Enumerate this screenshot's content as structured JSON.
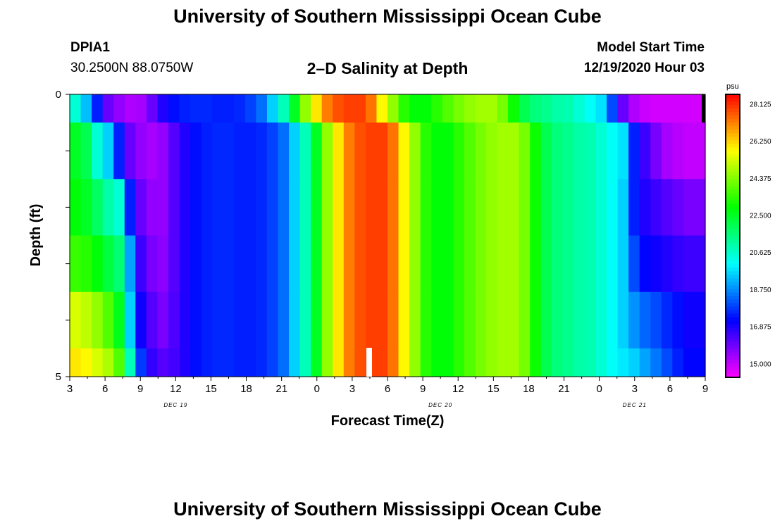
{
  "header": {
    "title": "University of Southern Mississippi Ocean Cube",
    "station": "DPIA1",
    "coordinates": "30.2500N 88.0750W",
    "subtitle": "2–D Salinity at Depth",
    "start_label": "Model Start Time",
    "start_value": "12/19/2020 Hour 03",
    "footer_title": "University of Southern Mississippi Ocean Cube"
  },
  "chart_data": {
    "type": "heatmap",
    "title": "2–D Salinity at Depth",
    "xlabel": "Forecast Time(Z)",
    "ylabel": "Depth (ft)",
    "ylim": [
      0,
      5
    ],
    "y_ticks": [
      "0",
      "5"
    ],
    "x_ticks": [
      "3",
      "6",
      "9",
      "12",
      "15",
      "18",
      "21",
      "0",
      "3",
      "6",
      "9",
      "12",
      "15",
      "18",
      "21",
      "0",
      "3",
      "6",
      "9"
    ],
    "date_labels": [
      "DEC 19",
      "DEC 20",
      "DEC 21"
    ],
    "colorbar": {
      "unit": "psu",
      "ticks": [
        "28.125",
        "26.250",
        "24.375",
        "22.500",
        "20.625",
        "18.750",
        "16.875",
        "15.000"
      ],
      "min": 14.3,
      "max": 28.6
    },
    "layers": [
      {
        "depth_range": [
          0,
          0.5
        ],
        "edge_values": [
          20.5,
          19.3,
          17.5,
          16.0,
          15.5,
          15.2,
          15.3,
          16.0,
          16.8,
          17.3,
          17.5,
          17.6,
          17.6,
          17.5,
          17.5,
          17.6,
          17.9,
          18.4,
          19.5,
          20.8,
          22.5,
          24.5,
          26.0,
          27.2,
          27.7,
          27.9,
          27.9,
          27.3,
          25.8,
          24.5,
          23.3,
          22.8,
          22.8,
          23.3,
          23.8,
          24.2,
          24.5,
          24.7,
          24.7,
          24.2,
          23.0,
          22.0,
          21.5,
          21.3,
          21.0,
          20.9,
          20.5,
          20.1,
          19.7,
          18.0,
          16.0,
          15.2,
          14.9,
          14.8,
          14.8,
          14.8,
          14.8,
          14.8
        ]
      },
      {
        "depth_range": [
          0.5,
          1.5
        ],
        "edge_values": [
          22.5,
          22.0,
          20.5,
          19.5,
          17.5,
          16.0,
          15.5,
          15.3,
          15.5,
          16.2,
          16.8,
          17.3,
          17.5,
          17.6,
          17.6,
          17.5,
          17.5,
          17.6,
          17.9,
          18.4,
          19.5,
          20.8,
          22.5,
          24.5,
          26.0,
          27.2,
          27.7,
          27.9,
          27.9,
          27.3,
          25.8,
          24.5,
          23.3,
          22.8,
          22.8,
          23.3,
          23.8,
          24.2,
          24.5,
          24.7,
          24.7,
          24.2,
          23.0,
          22.0,
          21.5,
          21.3,
          21.0,
          20.9,
          20.5,
          20.1,
          19.7,
          17.5,
          16.5,
          15.8,
          15.3,
          15.1,
          15.0,
          15.0
        ]
      },
      {
        "depth_range": [
          1.5,
          2.5
        ],
        "edge_values": [
          22.8,
          22.5,
          21.8,
          21.0,
          20.5,
          17.5,
          16.0,
          15.5,
          15.5,
          16.2,
          16.8,
          17.3,
          17.5,
          17.6,
          17.6,
          17.5,
          17.5,
          17.6,
          17.9,
          18.4,
          19.5,
          20.8,
          22.5,
          24.5,
          26.0,
          27.2,
          27.7,
          27.9,
          27.9,
          27.3,
          25.8,
          24.5,
          23.3,
          22.8,
          22.8,
          23.3,
          23.8,
          24.2,
          24.5,
          24.7,
          24.7,
          24.2,
          23.0,
          22.0,
          21.5,
          21.3,
          21.0,
          20.9,
          20.5,
          20.1,
          19.5,
          17.5,
          16.8,
          16.5,
          16.2,
          16.0,
          15.8,
          15.8
        ]
      },
      {
        "depth_range": [
          2.5,
          3.5
        ],
        "edge_values": [
          23.5,
          23.3,
          22.8,
          22.2,
          21.6,
          19.0,
          16.5,
          15.8,
          15.6,
          16.2,
          16.8,
          17.3,
          17.5,
          17.6,
          17.6,
          17.5,
          17.5,
          17.6,
          17.9,
          18.4,
          19.5,
          20.8,
          22.5,
          24.5,
          26.0,
          27.2,
          27.7,
          27.9,
          27.9,
          27.3,
          25.8,
          24.5,
          23.3,
          22.8,
          22.8,
          23.3,
          23.8,
          24.2,
          24.5,
          24.7,
          24.7,
          24.2,
          23.0,
          22.0,
          21.5,
          21.3,
          21.0,
          20.9,
          20.5,
          20.1,
          19.5,
          18.0,
          17.2,
          17.0,
          16.8,
          16.6,
          16.5,
          16.5
        ]
      },
      {
        "depth_range": [
          3.5,
          4.5
        ],
        "edge_values": [
          25.3,
          25.0,
          24.5,
          23.8,
          22.6,
          19.5,
          17.0,
          16.2,
          15.8,
          16.3,
          16.8,
          17.3,
          17.5,
          17.6,
          17.6,
          17.5,
          17.5,
          17.6,
          17.9,
          18.4,
          19.5,
          20.8,
          22.5,
          24.5,
          26.0,
          27.2,
          27.7,
          27.9,
          27.9,
          27.3,
          25.8,
          24.5,
          23.3,
          22.8,
          22.8,
          23.3,
          23.8,
          24.2,
          24.5,
          24.7,
          24.7,
          24.2,
          23.0,
          22.0,
          21.5,
          21.3,
          21.0,
          20.9,
          20.5,
          20.1,
          19.5,
          18.8,
          18.3,
          18.0,
          17.6,
          17.3,
          17.0,
          17.0
        ]
      },
      {
        "depth_range": [
          4.5,
          5
        ],
        "edge_values": [
          26.0,
          25.8,
          25.3,
          24.8,
          23.8,
          20.8,
          17.8,
          16.6,
          16.2,
          16.4,
          16.8,
          17.3,
          17.5,
          17.6,
          17.6,
          17.5,
          17.5,
          17.6,
          17.9,
          18.4,
          19.5,
          20.8,
          22.5,
          24.5,
          26.0,
          27.2,
          27.7,
          27.9,
          27.9,
          27.3,
          25.8,
          24.5,
          23.3,
          22.8,
          22.8,
          23.3,
          23.8,
          24.2,
          24.5,
          24.7,
          24.7,
          24.2,
          23.0,
          22.0,
          21.5,
          21.3,
          21.0,
          20.9,
          20.5,
          20.1,
          19.8,
          19.5,
          19.0,
          18.5,
          18.0,
          17.5,
          17.2,
          17.2
        ]
      }
    ]
  }
}
